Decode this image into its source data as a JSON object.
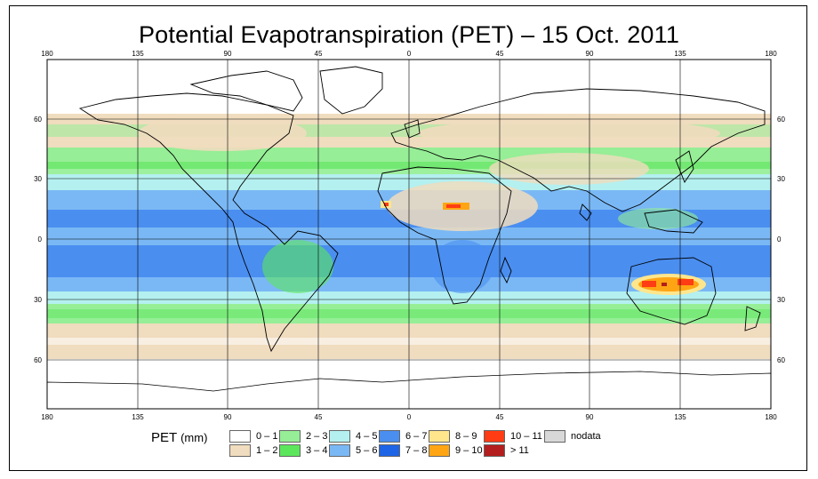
{
  "title": "Potential Evapotranspiration (PET) – 15 Oct. 2011",
  "axes": {
    "lon_ticks": [
      "180",
      "135",
      "90",
      "45",
      "0",
      "45",
      "90",
      "135",
      "180"
    ],
    "lat_ticks": [
      "60",
      "30",
      "0",
      "30",
      "60"
    ]
  },
  "legend": {
    "label": "PET",
    "unit": "(mm)",
    "items": [
      {
        "label": "0 – 1",
        "color": "#ffffff"
      },
      {
        "label": "1 – 2",
        "color": "#f0dcbe"
      },
      {
        "label": "2 – 3",
        "color": "#96ee96"
      },
      {
        "label": "3 – 4",
        "color": "#5ce65c"
      },
      {
        "label": "4 – 5",
        "color": "#b4f0f0"
      },
      {
        "label": "5 – 6",
        "color": "#7ab8f5"
      },
      {
        "label": "6 – 7",
        "color": "#4a8ef0"
      },
      {
        "label": "7 – 8",
        "color": "#1e64e6"
      },
      {
        "label": "8 – 9",
        "color": "#ffe68c"
      },
      {
        "label": "9 – 10",
        "color": "#ffa514"
      },
      {
        "label": "10 – 11",
        "color": "#ff3c14"
      },
      {
        "label": "> 11",
        "color": "#b41e1e"
      },
      {
        "label": "nodata",
        "color": "#d8d8d8"
      }
    ]
  },
  "colors": {
    "ocean_band_deep": "#4a8ef0",
    "ocean_band_mid": "#7ab8f5",
    "ocean_band_light": "#b4f0f0",
    "green_light": "#96ee96",
    "green": "#5ce65c",
    "tan": "#f0dcbe",
    "hot": "#ff3c14",
    "orange": "#ffa514",
    "yellow": "#ffe68c"
  }
}
